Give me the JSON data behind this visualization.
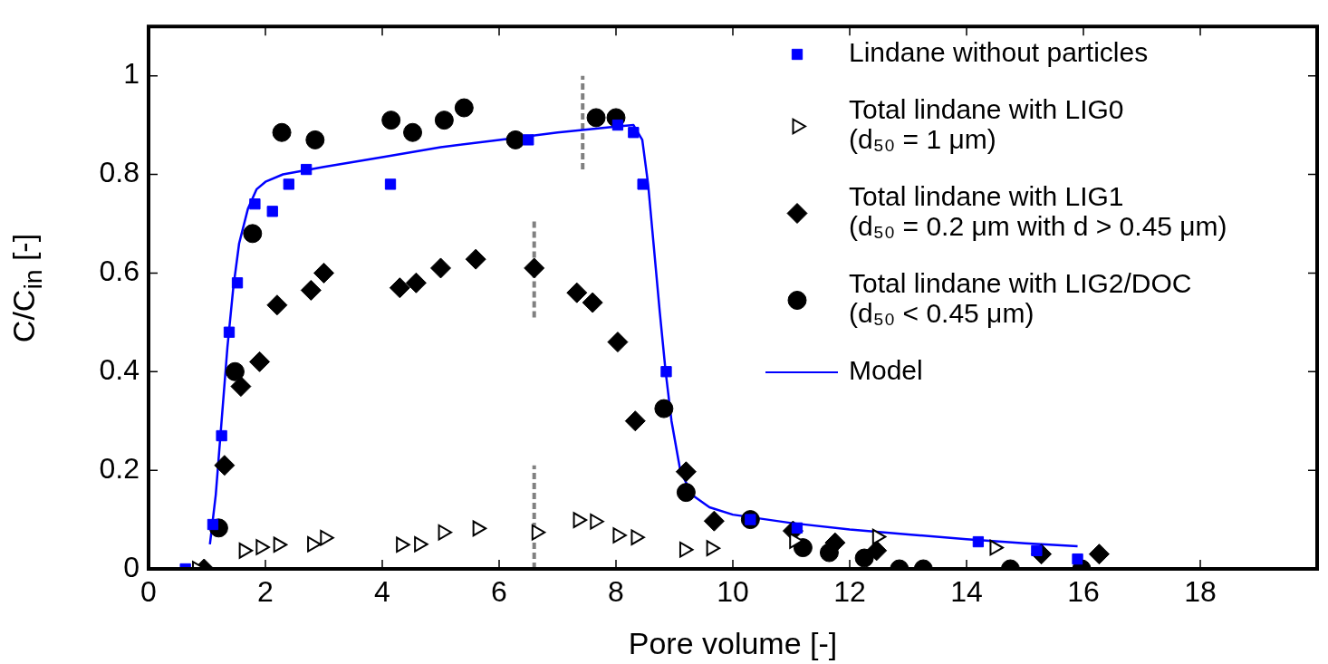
{
  "chart_data": {
    "type": "scatter",
    "xlabel": "Pore volume [-]",
    "ylabel": "C/C$_{in}$ [-]",
    "xlim": [
      0,
      20
    ],
    "xticks": [
      0,
      2,
      4,
      6,
      8,
      10,
      12,
      14,
      16,
      18
    ],
    "ylim": [
      0,
      1.1
    ],
    "yticks": [
      0,
      0.2,
      0.4,
      0.6,
      0.8,
      1
    ],
    "grid": false,
    "legend": "top right",
    "series": [
      {
        "name": "Lindane without particles",
        "marker": "square",
        "color": "#0000ff",
        "x": [
          0.63,
          1.1,
          1.25,
          1.38,
          1.52,
          1.82,
          2.12,
          2.4,
          2.7,
          4.14,
          6.5,
          8.03,
          8.3,
          8.46,
          8.86,
          10.3,
          11.1,
          14.2,
          15.2,
          15.9
        ],
        "values": [
          0,
          0.09,
          0.27,
          0.48,
          0.58,
          0.74,
          0.725,
          0.78,
          0.81,
          0.78,
          0.87,
          0.9,
          0.885,
          0.78,
          0.4,
          0.1,
          0.083,
          0.055,
          0.037,
          0.02
        ]
      },
      {
        "name": "Total lindane with LIG0\n(d₅₀ = 1 μm)",
        "marker": "triangle",
        "color": "#000000",
        "x": [
          0.83,
          1.63,
          1.92,
          2.22,
          2.8,
          3.02,
          4.32,
          4.63,
          5.04,
          5.63,
          6.64,
          7.35,
          7.64,
          8.03,
          8.34,
          9.17,
          9.63,
          11.05,
          12.47,
          14.48
        ],
        "values": [
          0,
          0.037,
          0.044,
          0.049,
          0.05,
          0.063,
          0.049,
          0.05,
          0.074,
          0.082,
          0.074,
          0.099,
          0.096,
          0.068,
          0.064,
          0.039,
          0.042,
          0.057,
          0.065,
          0.043
        ]
      },
      {
        "name": "Total lindane with LIG1\n(d₅₀ = 0.2 μm with d > 0.45 μm)",
        "marker": "diamond",
        "color": "#000000",
        "x": [
          0.95,
          1.3,
          1.58,
          1.9,
          2.2,
          2.78,
          3.0,
          4.3,
          4.58,
          5.0,
          5.6,
          6.6,
          7.33,
          7.6,
          8.03,
          8.33,
          9.2,
          9.68,
          11.03,
          11.75,
          12.46,
          15.28,
          16.27
        ],
        "values": [
          0,
          0.21,
          0.37,
          0.42,
          0.535,
          0.565,
          0.6,
          0.57,
          0.58,
          0.61,
          0.628,
          0.61,
          0.56,
          0.54,
          0.46,
          0.3,
          0.197,
          0.097,
          0.077,
          0.053,
          0.037,
          0.03,
          0.03
        ]
      },
      {
        "name": "Total lindane with LIG2/DOC\n(d₅₀ < 0.45 μm)",
        "marker": "circle",
        "color": "#000000",
        "x": [
          1.2,
          1.48,
          1.78,
          2.28,
          2.85,
          4.15,
          4.52,
          5.06,
          5.4,
          6.28,
          7.66,
          8.0,
          8.82,
          9.2,
          10.3,
          11.2,
          11.65,
          12.25,
          12.85,
          13.26,
          14.75,
          15.97
        ],
        "values": [
          0.083,
          0.4,
          0.68,
          0.885,
          0.87,
          0.91,
          0.885,
          0.91,
          0.935,
          0.87,
          0.915,
          0.915,
          0.325,
          0.155,
          0.1,
          0.043,
          0.033,
          0.022,
          0,
          0,
          0,
          0
        ]
      },
      {
        "name": "Model",
        "type": "line",
        "marker": "none",
        "color": "#0000ff",
        "x": [
          1.05,
          1.15,
          1.25,
          1.35,
          1.45,
          1.55,
          1.7,
          1.85,
          2.0,
          2.3,
          3,
          4,
          5,
          6,
          7,
          8,
          8.3,
          8.45,
          8.55,
          8.65,
          8.75,
          8.85,
          8.95,
          9.1,
          9.3,
          9.6,
          10,
          11,
          12,
          13,
          14,
          15,
          15.9
        ],
        "values": [
          0.05,
          0.15,
          0.3,
          0.45,
          0.57,
          0.66,
          0.73,
          0.77,
          0.785,
          0.8,
          0.815,
          0.835,
          0.855,
          0.87,
          0.885,
          0.897,
          0.9,
          0.87,
          0.78,
          0.65,
          0.52,
          0.4,
          0.3,
          0.2,
          0.15,
          0.125,
          0.11,
          0.093,
          0.08,
          0.07,
          0.06,
          0.052,
          0.046
        ]
      },
      {
        "type": "line",
        "marker": "none",
        "line_style": "dashed",
        "color": "#808080",
        "x": [
          7.43,
          7.43
        ],
        "values": [
          0.81,
          1.0
        ]
      },
      {
        "type": "line",
        "marker": "none",
        "line_style": "dashed",
        "color": "#808080",
        "x": [
          6.6,
          6.6
        ],
        "values": [
          0.51,
          0.71
        ]
      },
      {
        "type": "line",
        "marker": "none",
        "line_style": "dashed",
        "color": "#808080",
        "x": [
          6.6,
          6.6
        ],
        "values": [
          0,
          0.21
        ]
      }
    ]
  }
}
